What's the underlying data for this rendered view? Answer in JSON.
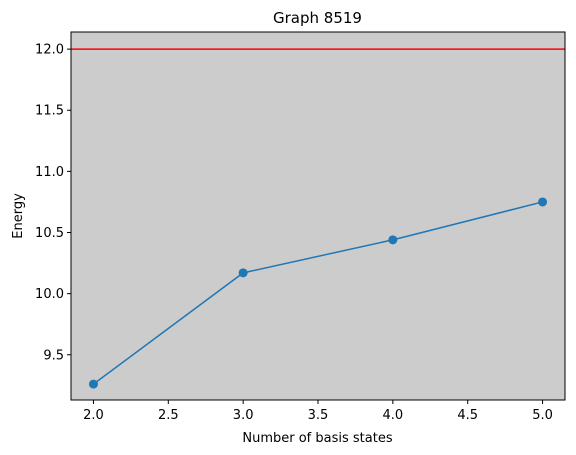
{
  "chart_data": {
    "type": "line",
    "title": "Graph 8519",
    "xlabel": "Number of basis states",
    "ylabel": "Energy",
    "xlim": [
      1.85,
      5.15
    ],
    "ylim": [
      9.13,
      12.14
    ],
    "xticks": [
      2.0,
      2.5,
      3.0,
      3.5,
      4.0,
      4.5,
      5.0
    ],
    "xtick_labels": [
      "2.0",
      "2.5",
      "3.0",
      "3.5",
      "4.0",
      "4.5",
      "5.0"
    ],
    "yticks": [
      9.5,
      10.0,
      10.5,
      11.0,
      11.5,
      12.0
    ],
    "ytick_labels": [
      "9.5",
      "10.0",
      "10.5",
      "11.0",
      "11.5",
      "12.0"
    ],
    "grid": false,
    "series": [
      {
        "x": [
          2,
          3,
          4,
          5
        ],
        "y": [
          9.26,
          10.17,
          10.44,
          10.75
        ],
        "color": "#1f77b4",
        "marker": "circle"
      }
    ],
    "hlines": [
      {
        "y": 12.0,
        "color": "#ff0000"
      }
    ],
    "plot_background": "#cccccc"
  }
}
